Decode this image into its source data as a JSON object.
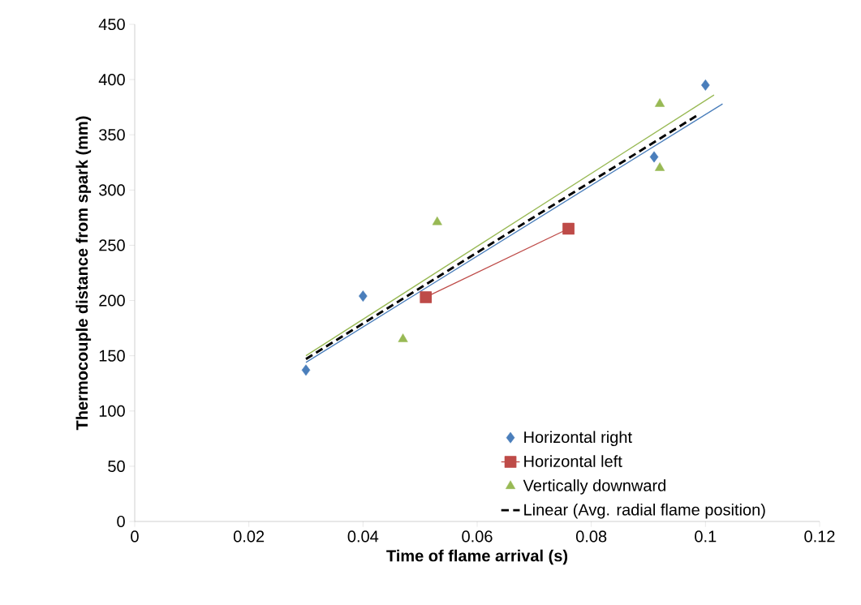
{
  "chart_data": {
    "type": "scatter",
    "xlabel": "Time of flame arrival (s)",
    "ylabel": "Thermocouple distance from spark (mm)",
    "xlim": [
      0,
      0.12
    ],
    "ylim": [
      0,
      450
    ],
    "xticks": [
      0,
      0.02,
      0.04,
      0.06,
      0.08,
      0.1,
      0.12
    ],
    "yticks": [
      0,
      50,
      100,
      150,
      200,
      250,
      300,
      350,
      400,
      450
    ],
    "grid": false,
    "legend": "bottom right",
    "series": [
      {
        "name": "Horizontal right",
        "marker": "diamond",
        "color": "#4a7ebb",
        "x": [
          0.03,
          0.04,
          0.091,
          0.1
        ],
        "values": [
          137,
          204,
          330,
          395
        ]
      },
      {
        "name": "Horizontal left",
        "type": "line",
        "marker": "square",
        "line_style": "solid",
        "color": "#be4b48",
        "x": [
          0.051,
          0.076
        ],
        "values": [
          203,
          265
        ]
      },
      {
        "name": "Vertically downward",
        "marker": "triangle",
        "color": "#98b954",
        "x": [
          0.047,
          0.053,
          0.092,
          0.092
        ],
        "values": [
          165,
          271,
          378,
          320
        ]
      },
      {
        "type": "line",
        "marker": "none",
        "line_style": "solid",
        "color": "#4a7ebb",
        "x": [
          0.03,
          0.103
        ],
        "values": [
          144,
          378
        ]
      },
      {
        "type": "line",
        "marker": "none",
        "line_style": "solid",
        "color": "#98b954",
        "x": [
          0.03,
          0.1015
        ],
        "values": [
          150,
          386
        ]
      },
      {
        "name": "Linear (Avg. radial flame position)",
        "type": "line",
        "marker": "none",
        "line_style": "dashed",
        "color": "#000000",
        "x": [
          0.03,
          0.0987
        ],
        "values": [
          147,
          368
        ]
      }
    ]
  }
}
